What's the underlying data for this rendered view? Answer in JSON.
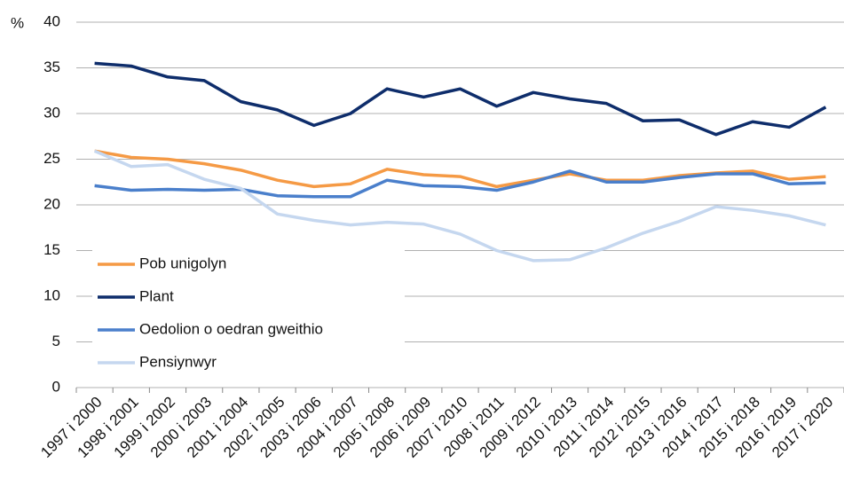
{
  "chart_data": {
    "type": "line",
    "y_label": "%",
    "categories": [
      "1997 i 2000",
      "1998 i 2001",
      "1999 i 2002",
      "2000 i 2003",
      "2001 i 2004",
      "2002 i 2005",
      "2003 i 2006",
      "2004 i 2007",
      "2005 i 2008",
      "2006 i 2009",
      "2007 i 2010",
      "2008 i 2011",
      "2009 i 2012",
      "2010 i 2013",
      "2011 i 2014",
      "2012 i 2015",
      "2013 i 2016",
      "2014 i 2017",
      "2015 i 2018",
      "2016 i 2019",
      "2017 i 2020"
    ],
    "series": [
      {
        "name": "Pob unigolyn",
        "color": "#f59a45",
        "values": [
          25.9,
          25.2,
          25.0,
          24.5,
          23.8,
          22.7,
          22.0,
          22.3,
          23.9,
          23.3,
          23.1,
          22.0,
          22.7,
          23.4,
          22.7,
          22.7,
          23.2,
          23.5,
          23.7,
          22.8,
          23.1
        ]
      },
      {
        "name": "Plant",
        "color": "#0e2d6b",
        "values": [
          35.5,
          35.2,
          34.0,
          33.6,
          31.3,
          30.4,
          28.7,
          30.0,
          32.7,
          31.8,
          32.7,
          30.8,
          32.3,
          31.6,
          31.1,
          29.2,
          29.3,
          27.7,
          29.1,
          28.5,
          30.7
        ]
      },
      {
        "name": "Oedolion o oedran gweithio",
        "color": "#4a7fcb",
        "values": [
          22.1,
          21.6,
          21.7,
          21.6,
          21.7,
          21.0,
          20.9,
          20.9,
          22.7,
          22.1,
          22.0,
          21.6,
          22.5,
          23.7,
          22.5,
          22.5,
          23.0,
          23.4,
          23.4,
          22.3,
          22.4
        ]
      },
      {
        "name": "Pensiynwyr",
        "color": "#c5d7ef",
        "values": [
          25.9,
          24.2,
          24.4,
          22.8,
          21.8,
          19.0,
          18.3,
          17.8,
          18.1,
          17.9,
          16.8,
          15.0,
          13.9,
          14.0,
          15.3,
          16.9,
          18.2,
          19.8,
          19.4,
          18.8,
          17.8
        ]
      }
    ],
    "ylim": [
      0,
      40
    ],
    "yticks": [
      0,
      5,
      10,
      15,
      20,
      25,
      30,
      35,
      40
    ],
    "grid": true,
    "legend": "lower-left"
  }
}
